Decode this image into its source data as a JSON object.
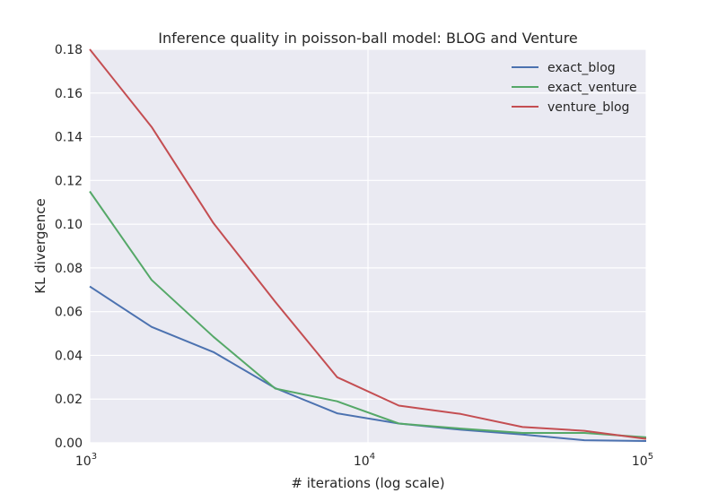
{
  "chart_data": {
    "type": "line",
    "title": "Inference quality in poisson-ball model: BLOG and Venture",
    "xlabel": "# iterations (log scale)",
    "ylabel": "KL divergence",
    "xscale": "log",
    "xlim": [
      1000,
      100000
    ],
    "ylim": [
      0,
      0.18
    ],
    "yticks": [
      "0.00",
      "0.02",
      "0.04",
      "0.06",
      "0.08",
      "0.10",
      "0.12",
      "0.14",
      "0.16",
      "0.18"
    ],
    "xticks": [
      {
        "base": "10",
        "exp": "3"
      },
      {
        "base": "10",
        "exp": "4"
      },
      {
        "base": "10",
        "exp": "5"
      }
    ],
    "grid": true,
    "legend": "top-right",
    "x": [
      1000,
      1668,
      2783,
      4642,
      7743,
      12915,
      21544,
      35938,
      59948,
      100000
    ],
    "series": [
      {
        "name": "exact_blog",
        "color": "#4c72b0",
        "values": [
          0.0715,
          0.053,
          0.0415,
          0.025,
          0.0135,
          0.0088,
          0.006,
          0.0038,
          0.0012,
          0.0008
        ]
      },
      {
        "name": "exact_venture",
        "color": "#55a868",
        "values": [
          0.115,
          0.0745,
          0.0485,
          0.0248,
          0.019,
          0.0088,
          0.0065,
          0.0045,
          0.0045,
          0.0025
        ]
      },
      {
        "name": "venture_blog",
        "color": "#c44e52",
        "values": [
          0.18,
          0.1445,
          0.1005,
          0.0645,
          0.03,
          0.017,
          0.0132,
          0.0072,
          0.0055,
          0.0018
        ]
      }
    ]
  }
}
